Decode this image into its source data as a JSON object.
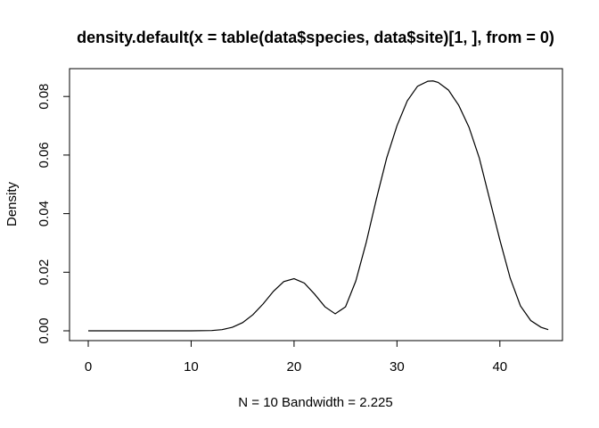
{
  "chart_data": {
    "type": "line",
    "title": "density.default(x = table(data$species, data$site)[1, ], from = 0)",
    "xlabel": "N = 10   Bandwidth = 2.225",
    "ylabel": "Density",
    "xlim": [
      0,
      45
    ],
    "ylim": [
      0,
      0.085
    ],
    "grid": false,
    "legend": "none",
    "x_ticks": [
      "0",
      "10",
      "20",
      "30",
      "40"
    ],
    "y_ticks": [
      "0.00",
      "0.02",
      "0.04",
      "0.06",
      "0.08"
    ],
    "series": [
      {
        "color": "#000000",
        "x": [
          0,
          5,
          10,
          12,
          13,
          14,
          15,
          16,
          17,
          18,
          19,
          20,
          21,
          22,
          23,
          24,
          25,
          26,
          27,
          28,
          29,
          30,
          31,
          32,
          33,
          33.5,
          34,
          35,
          36,
          37,
          38,
          39,
          40,
          41,
          42,
          43,
          44,
          44.7
        ],
        "y": [
          0,
          0,
          0,
          0.0001,
          0.0004,
          0.0012,
          0.0028,
          0.0055,
          0.0092,
          0.0135,
          0.0168,
          0.0178,
          0.0163,
          0.0125,
          0.0082,
          0.0058,
          0.0082,
          0.017,
          0.03,
          0.045,
          0.059,
          0.07,
          0.0785,
          0.0835,
          0.0852,
          0.0853,
          0.0848,
          0.0822,
          0.077,
          0.0695,
          0.059,
          0.045,
          0.031,
          0.018,
          0.0085,
          0.0035,
          0.0012,
          0.0004
        ]
      }
    ]
  }
}
